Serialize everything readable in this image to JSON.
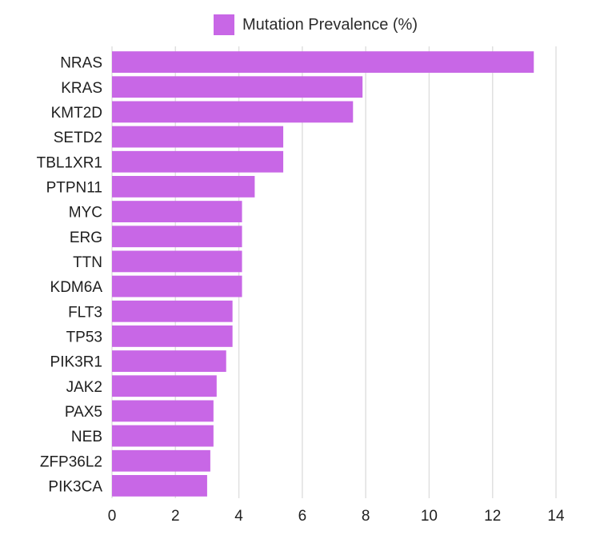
{
  "chart_data": {
    "type": "bar",
    "orientation": "horizontal",
    "categories": [
      "NRAS",
      "KRAS",
      "KMT2D",
      "SETD2",
      "TBL1XR1",
      "PTPN11",
      "MYC",
      "ERG",
      "TTN",
      "KDM6A",
      "FLT3",
      "TP53",
      "PIK3R1",
      "JAK2",
      "PAX5",
      "NEB",
      "ZFP36L2",
      "PIK3CA"
    ],
    "series": [
      {
        "name": "Mutation Prevalence (%)",
        "values": [
          13.3,
          7.9,
          7.6,
          5.4,
          5.4,
          4.5,
          4.1,
          4.1,
          4.1,
          4.1,
          3.8,
          3.8,
          3.6,
          3.3,
          3.2,
          3.2,
          3.1,
          3.0
        ]
      }
    ],
    "xlim": [
      0,
      14
    ],
    "xticks": [
      0,
      2,
      4,
      6,
      8,
      10,
      12,
      14
    ],
    "grid": true,
    "legend_position": "top",
    "colors": {
      "bar": "#c867e6",
      "grid": "#e0e0e0",
      "text": "#1f1f1f"
    }
  }
}
